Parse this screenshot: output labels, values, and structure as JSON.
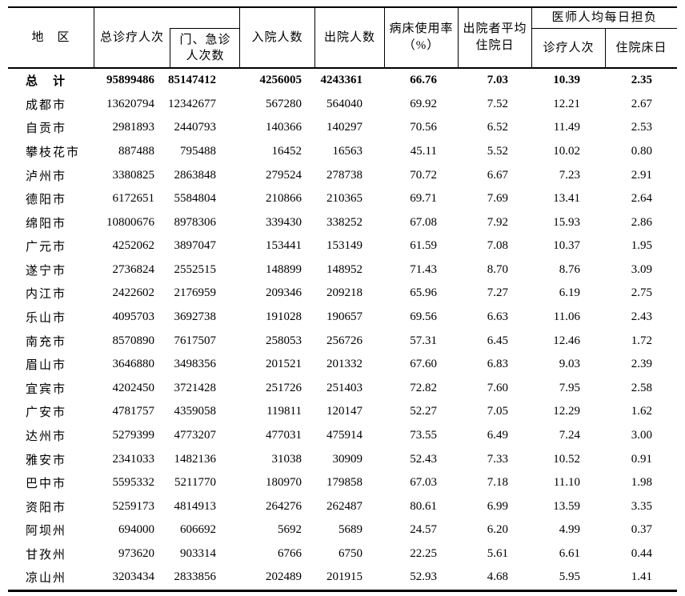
{
  "table": {
    "header": {
      "region": "地　区",
      "total_visits": "总诊疗人次",
      "outpatient_emergency_line1": "门、急诊",
      "outpatient_emergency_line2": "人次数",
      "admissions": "入院人数",
      "discharges": "出院人数",
      "bed_usage_rate_line1": "病床使用率",
      "bed_usage_rate_line2": "（%）",
      "avg_stay_line1": "出院者平均",
      "avg_stay_line2": "住院日",
      "physician_group": "医师人均每日担负",
      "physician_visits": "诊疗人次",
      "physician_bed_days": "住院床日"
    },
    "rows": [
      {
        "region": "总　计",
        "bold": true,
        "values": [
          "95899486",
          "85147412",
          "4256005",
          "4243361",
          "66.76",
          "7.03",
          "10.39",
          "2.35"
        ]
      },
      {
        "region": "成都市",
        "bold": false,
        "values": [
          "13620794",
          "12342677",
          "567280",
          "564040",
          "69.92",
          "7.52",
          "12.21",
          "2.67"
        ]
      },
      {
        "region": "自贡市",
        "bold": false,
        "values": [
          "2981893",
          "2440793",
          "140366",
          "140297",
          "70.56",
          "6.52",
          "11.49",
          "2.53"
        ]
      },
      {
        "region": "攀枝花市",
        "bold": false,
        "values": [
          "887488",
          "795488",
          "16452",
          "16563",
          "45.11",
          "5.52",
          "10.02",
          "0.80"
        ]
      },
      {
        "region": "泸州市",
        "bold": false,
        "values": [
          "3380825",
          "2863848",
          "279524",
          "278738",
          "70.72",
          "6.67",
          "7.23",
          "2.91"
        ]
      },
      {
        "region": "德阳市",
        "bold": false,
        "values": [
          "6172651",
          "5584804",
          "210866",
          "210365",
          "69.71",
          "7.69",
          "13.41",
          "2.64"
        ]
      },
      {
        "region": "绵阳市",
        "bold": false,
        "values": [
          "10800676",
          "8978306",
          "339430",
          "338252",
          "67.08",
          "7.92",
          "15.93",
          "2.86"
        ]
      },
      {
        "region": "广元市",
        "bold": false,
        "values": [
          "4252062",
          "3897047",
          "153441",
          "153149",
          "61.59",
          "7.08",
          "10.37",
          "1.95"
        ]
      },
      {
        "region": "遂宁市",
        "bold": false,
        "values": [
          "2736824",
          "2552515",
          "148899",
          "148952",
          "71.43",
          "8.70",
          "8.76",
          "3.09"
        ]
      },
      {
        "region": "内江市",
        "bold": false,
        "values": [
          "2422602",
          "2176959",
          "209346",
          "209218",
          "65.96",
          "7.27",
          "6.19",
          "2.75"
        ]
      },
      {
        "region": "乐山市",
        "bold": false,
        "values": [
          "4095703",
          "3692738",
          "191028",
          "190657",
          "69.56",
          "6.63",
          "11.06",
          "2.43"
        ]
      },
      {
        "region": "南充市",
        "bold": false,
        "values": [
          "8570890",
          "7617507",
          "258053",
          "256726",
          "57.31",
          "6.45",
          "12.46",
          "1.72"
        ]
      },
      {
        "region": "眉山市",
        "bold": false,
        "values": [
          "3646880",
          "3498356",
          "201521",
          "201332",
          "67.60",
          "6.83",
          "9.03",
          "2.39"
        ]
      },
      {
        "region": "宜宾市",
        "bold": false,
        "values": [
          "4202450",
          "3721428",
          "251726",
          "251403",
          "72.82",
          "7.60",
          "7.95",
          "2.58"
        ]
      },
      {
        "region": "广安市",
        "bold": false,
        "values": [
          "4781757",
          "4359058",
          "119811",
          "120147",
          "52.27",
          "7.05",
          "12.29",
          "1.62"
        ]
      },
      {
        "region": "达州市",
        "bold": false,
        "values": [
          "5279399",
          "4773207",
          "477031",
          "475914",
          "73.55",
          "6.49",
          "7.24",
          "3.00"
        ]
      },
      {
        "region": "雅安市",
        "bold": false,
        "values": [
          "2341033",
          "1482136",
          "31038",
          "30909",
          "52.43",
          "7.33",
          "10.52",
          "0.91"
        ]
      },
      {
        "region": "巴中市",
        "bold": false,
        "values": [
          "5595332",
          "5211770",
          "180970",
          "179858",
          "67.03",
          "7.18",
          "11.10",
          "1.98"
        ]
      },
      {
        "region": "资阳市",
        "bold": false,
        "values": [
          "5259173",
          "4814913",
          "264276",
          "262487",
          "80.61",
          "6.99",
          "13.59",
          "3.35"
        ]
      },
      {
        "region": "阿坝州",
        "bold": false,
        "values": [
          "694000",
          "606692",
          "5692",
          "5689",
          "24.57",
          "6.20",
          "4.99",
          "0.37"
        ]
      },
      {
        "region": "甘孜州",
        "bold": false,
        "values": [
          "973620",
          "903314",
          "6766",
          "6750",
          "22.25",
          "5.61",
          "6.61",
          "0.44"
        ]
      },
      {
        "region": "凉山州",
        "bold": false,
        "values": [
          "3203434",
          "2833856",
          "202489",
          "201915",
          "52.93",
          "4.68",
          "5.95",
          "1.41"
        ]
      }
    ]
  }
}
